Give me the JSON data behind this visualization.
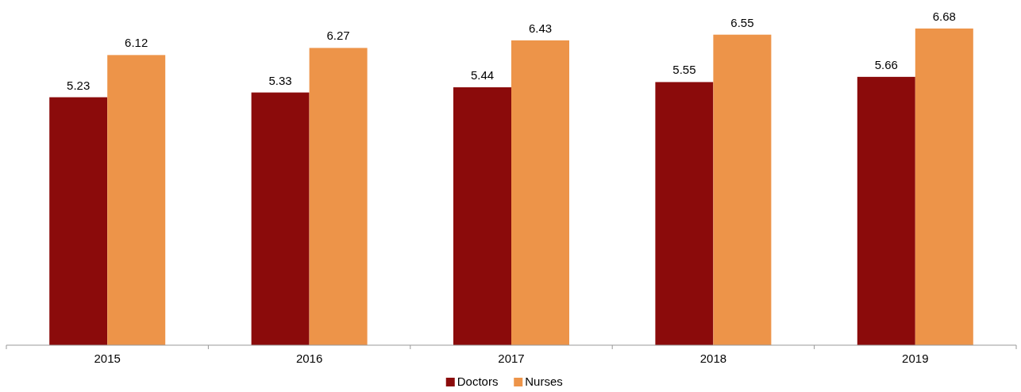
{
  "chart_data": {
    "type": "bar",
    "categories": [
      "2015",
      "2016",
      "2017",
      "2018",
      "2019"
    ],
    "series": [
      {
        "name": "Doctors",
        "color": "#8b0b0b",
        "values": [
          5.23,
          5.33,
          5.44,
          5.55,
          5.66
        ]
      },
      {
        "name": "Nurses",
        "color": "#ed9449",
        "values": [
          6.12,
          6.27,
          6.43,
          6.55,
          6.68
        ]
      }
    ],
    "data_labels": true,
    "legend": "bottom"
  }
}
